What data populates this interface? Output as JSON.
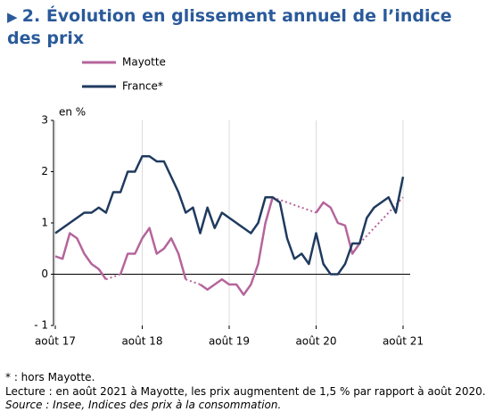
{
  "chart_data": {
    "type": "line",
    "title": "2. Évolution en glissement annuel de l’indice des prix",
    "y_label": "en %",
    "categories": [
      "août 17",
      null,
      null,
      null,
      null,
      null,
      null,
      null,
      null,
      null,
      null,
      null,
      "août 18",
      null,
      null,
      null,
      null,
      null,
      null,
      null,
      null,
      null,
      null,
      null,
      "août 19",
      null,
      null,
      null,
      null,
      null,
      null,
      null,
      null,
      null,
      null,
      null,
      "août 20",
      null,
      null,
      null,
      null,
      null,
      null,
      null,
      null,
      null,
      null,
      null,
      "août 21"
    ],
    "series": [
      {
        "name": "Mayotte",
        "color": "#b5659b",
        "values": [
          0.35,
          0.3,
          0.8,
          0.7,
          0.4,
          0.2,
          0.1,
          -0.1,
          null,
          0.0,
          0.4,
          0.4,
          0.7,
          0.9,
          0.4,
          0.5,
          0.7,
          0.4,
          -0.1,
          null,
          -0.2,
          -0.3,
          -0.2,
          -0.1,
          -0.2,
          -0.2,
          -0.4,
          -0.2,
          0.2,
          1.0,
          1.5,
          null,
          null,
          null,
          null,
          null,
          1.2,
          1.4,
          1.3,
          1.0,
          0.95,
          0.4,
          0.6,
          null,
          null,
          null,
          null,
          null,
          1.5
        ]
      },
      {
        "name": "France*",
        "color": "#1f3a5f",
        "values": [
          0.8,
          0.9,
          1.0,
          1.1,
          1.2,
          1.2,
          1.3,
          1.2,
          1.6,
          1.6,
          2.0,
          2.0,
          2.3,
          2.3,
          2.2,
          2.2,
          1.9,
          1.6,
          1.2,
          1.3,
          0.8,
          1.3,
          0.9,
          1.2,
          1.1,
          1.0,
          0.9,
          0.8,
          1.0,
          1.5,
          1.5,
          1.4,
          0.7,
          0.3,
          0.4,
          0.2,
          0.8,
          0.2,
          0.0,
          0.0,
          0.2,
          0.6,
          0.6,
          1.1,
          1.3,
          1.4,
          1.5,
          1.2,
          1.9
        ]
      }
    ],
    "gaps": "dotted",
    "ylim": [
      -1,
      3
    ],
    "yticks": [
      {
        "value": -1,
        "label": "- 1"
      },
      0,
      1,
      2,
      3
    ],
    "grid": true,
    "notes": [
      "* : hors Mayotte.",
      "Lecture : en août 2021 à Mayotte, les prix augmentent de 1,5 % par rapport à août 2020.",
      "Source : Insee, Indices des prix à la consommation."
    ]
  }
}
